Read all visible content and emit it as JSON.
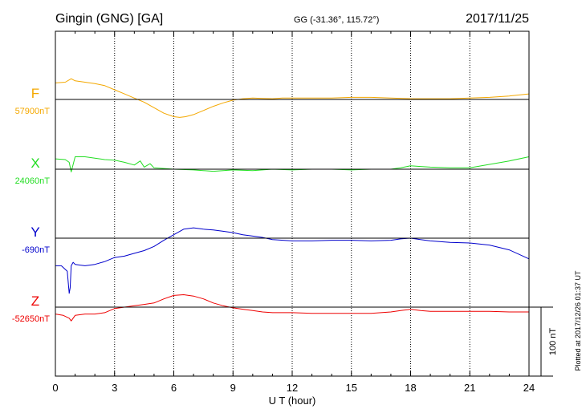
{
  "header": {
    "station": "Gingin (GNG)  [GA]",
    "coords": "GG (-31.36°, 115.72°)",
    "date": "2017/11/25"
  },
  "footer_note": "Plotted at 2017/12/26 01:37 UT",
  "chart_data": {
    "type": "line",
    "xlabel": "U T (hour)",
    "xlim": [
      0,
      24
    ],
    "xticks": [
      0,
      3,
      6,
      9,
      12,
      15,
      18,
      21,
      24
    ],
    "grid": true,
    "scale_bar": {
      "label": "100 nT",
      "value": 100
    },
    "units": "nT",
    "series": [
      {
        "name": "F",
        "baseline_label": "57900nT",
        "baseline": 57900,
        "color": "#f4a800",
        "x": [
          0,
          0.5,
          0.8,
          1,
          1.5,
          2,
          2.5,
          3,
          3.5,
          4,
          4.5,
          5,
          5.5,
          6,
          6.3,
          6.6,
          7,
          7.5,
          8,
          8.5,
          9,
          9.5,
          10,
          10.5,
          11,
          11.5,
          12,
          13,
          14,
          15,
          16,
          17,
          18,
          19,
          20,
          21,
          22,
          23,
          24
        ],
        "y": [
          24,
          25,
          30,
          27,
          25,
          23,
          20,
          14,
          8,
          2,
          -4,
          -12,
          -20,
          -25,
          -26,
          -25,
          -22,
          -16,
          -10,
          -5,
          -1,
          1,
          2,
          1.5,
          1,
          2,
          2,
          2,
          2,
          3,
          3,
          2,
          1,
          1,
          1,
          2,
          3,
          5,
          8
        ]
      },
      {
        "name": "X",
        "baseline_label": "24060nT",
        "baseline": 24060,
        "color": "#22dd22",
        "x": [
          0,
          0.5,
          0.7,
          0.8,
          1,
          1.5,
          2,
          2.5,
          3,
          3.5,
          4,
          4.3,
          4.5,
          4.8,
          5,
          6,
          7,
          8,
          9,
          10,
          11,
          12,
          13,
          14,
          15,
          16,
          17,
          17.5,
          18,
          18.5,
          19,
          20,
          21,
          22,
          23,
          24
        ],
        "y": [
          15,
          14,
          10,
          -4,
          18,
          18,
          16,
          14,
          13,
          10,
          6,
          12,
          3,
          8,
          2,
          0,
          -1,
          -3,
          -1,
          -2,
          0,
          -1,
          0,
          0,
          -1,
          0,
          0,
          2,
          5,
          4,
          3,
          2,
          2,
          7,
          12,
          18
        ]
      },
      {
        "name": "Y",
        "baseline_label": "-690nT",
        "baseline": -690,
        "color": "#0000cc",
        "x": [
          0,
          0.3,
          0.6,
          0.7,
          0.75,
          0.8,
          0.9,
          1,
          1.5,
          2,
          2.5,
          3,
          3.5,
          4,
          4.5,
          5,
          5.5,
          6,
          6.5,
          7,
          7.5,
          8,
          8.5,
          9,
          9.5,
          10,
          10.5,
          11,
          12,
          13,
          14,
          15,
          16,
          17,
          17.5,
          18,
          18.5,
          19,
          20,
          21,
          22,
          23,
          24
        ],
        "y": [
          -40,
          -40,
          -48,
          -80,
          -72,
          -40,
          -35,
          -38,
          -40,
          -38,
          -34,
          -28,
          -26,
          -22,
          -18,
          -12,
          -3,
          5,
          13,
          15,
          13,
          12,
          10,
          8,
          5,
          3,
          1,
          -2,
          -4,
          -4,
          -3,
          -3,
          -4,
          -3,
          -1,
          0,
          -2,
          -4,
          -6,
          -7,
          -10,
          -17,
          -30
        ]
      },
      {
        "name": "Z",
        "baseline_label": "-52650nT",
        "baseline": -52650,
        "color": "#ee0000",
        "x": [
          0,
          0.4,
          0.7,
          0.8,
          1,
          1.5,
          2,
          2.5,
          3,
          3.5,
          4,
          4.5,
          5,
          5.5,
          6,
          6.5,
          7,
          7.5,
          8,
          8.5,
          9,
          9.5,
          10,
          10.5,
          11,
          12,
          13,
          14,
          15,
          16,
          17,
          17.5,
          18,
          18.5,
          19,
          20,
          21,
          22,
          23,
          24
        ],
        "y": [
          -10,
          -12,
          -16,
          -20,
          -12,
          -10,
          -10,
          -8,
          -2,
          0,
          2,
          4,
          6,
          12,
          17,
          18,
          16,
          12,
          6,
          2,
          -1,
          -3,
          -5,
          -7,
          -8,
          -8,
          -9,
          -9,
          -9,
          -9,
          -7,
          -5,
          -3,
          -5,
          -6,
          -6,
          -6,
          -6,
          -7,
          -7
        ]
      }
    ]
  }
}
